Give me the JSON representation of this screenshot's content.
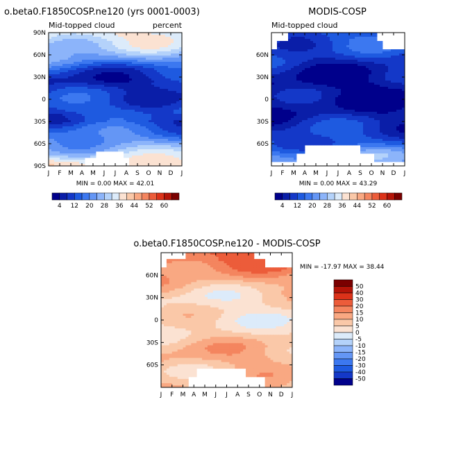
{
  "chart_data": [
    {
      "type": "heatmap",
      "title": "o.beta0.F1850COSP.ne120 (yrs 0001-0003)",
      "subtitle": "Mid-topped cloud",
      "units": "percent",
      "x_tick_labels": [
        "J",
        "F",
        "M",
        "A",
        "M",
        "J",
        "J",
        "A",
        "S",
        "O",
        "N",
        "D",
        "J"
      ],
      "y_tick_labels": [
        "90N",
        "60N",
        "30N",
        "0",
        "30S",
        "60S",
        "90S"
      ],
      "ylim": [
        -90,
        90
      ],
      "stats": "MIN =    0.00 MAX =   42.01",
      "colorbar_labels": [
        "4",
        "12",
        "20",
        "28",
        "36",
        "44",
        "52",
        "60"
      ],
      "zonal_profile": [
        {
          "lat": 85,
          "value": 36
        },
        {
          "lat": 70,
          "value": 30
        },
        {
          "lat": 55,
          "value": 22
        },
        {
          "lat": 40,
          "value": 12
        },
        {
          "lat": 25,
          "value": 6
        },
        {
          "lat": 10,
          "value": 9
        },
        {
          "lat": 0,
          "value": 11
        },
        {
          "lat": -15,
          "value": 14
        },
        {
          "lat": -30,
          "value": 10
        },
        {
          "lat": -45,
          "value": 17
        },
        {
          "lat": -60,
          "value": 24
        },
        {
          "lat": -75,
          "value": 30
        },
        {
          "lat": -85,
          "value": 36
        }
      ]
    },
    {
      "type": "heatmap",
      "title": "MODIS-COSP",
      "subtitle": "Mid-topped cloud",
      "x_tick_labels": [
        "J",
        "F",
        "M",
        "A",
        "M",
        "J",
        "J",
        "A",
        "S",
        "O",
        "N",
        "D",
        "J"
      ],
      "y_tick_labels": [
        "60N",
        "30N",
        "0",
        "30S",
        "60S"
      ],
      "ylim": [
        -90,
        90
      ],
      "stats": "MIN =    0.00 MAX =   43.29",
      "colorbar_labels": [
        "4",
        "12",
        "20",
        "28",
        "36",
        "44",
        "52",
        "60"
      ],
      "zonal_profile": [
        {
          "lat": 80,
          "value": 14
        },
        {
          "lat": 60,
          "value": 10
        },
        {
          "lat": 40,
          "value": 6
        },
        {
          "lat": 20,
          "value": 3
        },
        {
          "lat": 0,
          "value": 4
        },
        {
          "lat": -20,
          "value": 6
        },
        {
          "lat": -40,
          "value": 9
        },
        {
          "lat": -60,
          "value": 14
        },
        {
          "lat": -75,
          "value": 22
        }
      ]
    },
    {
      "type": "heatmap",
      "title": "o.beta0.F1850COSP.ne120 - MODIS-COSP",
      "x_tick_labels": [
        "J",
        "F",
        "M",
        "A",
        "M",
        "J",
        "J",
        "A",
        "S",
        "O",
        "N",
        "D",
        "J"
      ],
      "y_tick_labels": [
        "60N",
        "30N",
        "0",
        "30S",
        "60S"
      ],
      "ylim": [
        -90,
        90
      ],
      "stats": "MIN = -17.97 MAX =   38.44",
      "colorbar_labels": [
        "50",
        "40",
        "30",
        "20",
        "15",
        "10",
        "5",
        "0",
        "-5",
        "-10",
        "-15",
        "-20",
        "-30",
        "-40",
        "-50"
      ],
      "zonal_profile": [
        {
          "lat": 80,
          "value": 22
        },
        {
          "lat": 65,
          "value": 15
        },
        {
          "lat": 50,
          "value": 10
        },
        {
          "lat": 30,
          "value": 4
        },
        {
          "lat": 0,
          "value": 3
        },
        {
          "lat": -20,
          "value": 6
        },
        {
          "lat": -35,
          "value": 10
        },
        {
          "lat": -50,
          "value": 12
        },
        {
          "lat": -65,
          "value": 9
        },
        {
          "lat": -80,
          "value": 8
        }
      ]
    }
  ],
  "colors": {
    "seq_scale": [
      "#00008b",
      "#0a1ea8",
      "#1438c8",
      "#1e5ae0",
      "#3c78f0",
      "#6496f5",
      "#8cb4fa",
      "#b4d2fa",
      "#dcebfa",
      "#fbe2d2",
      "#fac8a8",
      "#f9a882",
      "#f4855f",
      "#ec5c3a",
      "#dc3219",
      "#b41408",
      "#7a0000"
    ],
    "diff_scale": [
      "#7a0000",
      "#b41408",
      "#dc3219",
      "#ec5c3a",
      "#f4855f",
      "#f9a882",
      "#fac8a8",
      "#fbe2d2",
      "#dcebfa",
      "#b4d2fa",
      "#8cb4fa",
      "#6496f5",
      "#3c78f0",
      "#1e5ae0",
      "#1438c8",
      "#00008b"
    ]
  }
}
